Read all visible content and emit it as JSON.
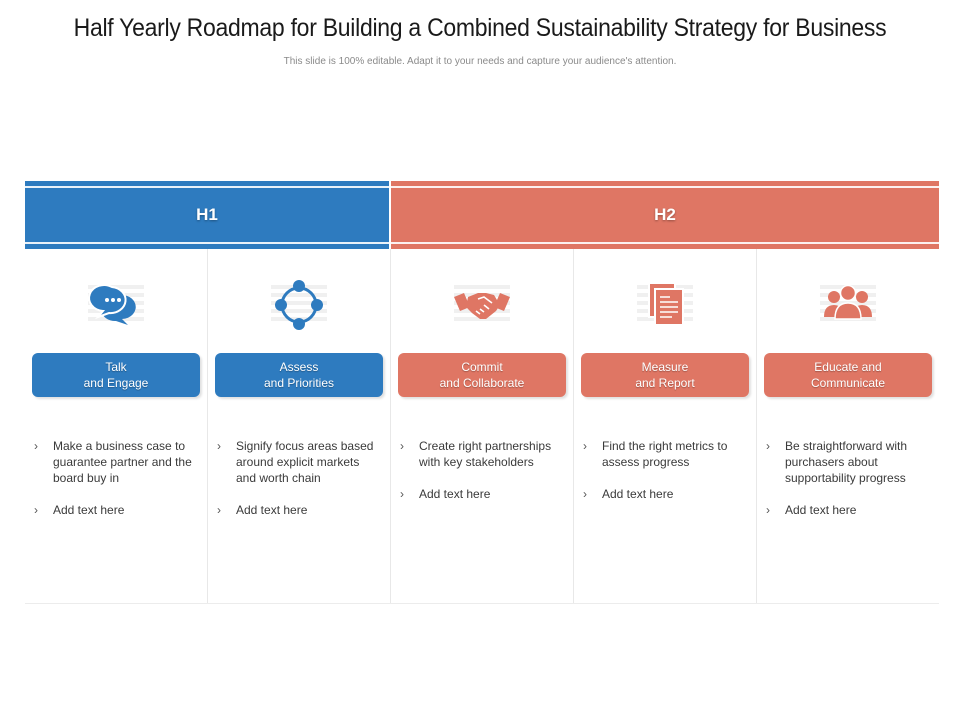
{
  "title": "Half Yearly Roadmap for Building a Combined Sustainability Strategy for Business",
  "subtitle": "This slide is 100% editable. Adapt it to your needs and capture your audience's attention.",
  "colors": {
    "blue": "#2e7bbf",
    "red": "#df7664"
  },
  "periods": [
    {
      "label": "H1"
    },
    {
      "label": "H2"
    }
  ],
  "columns": [
    {
      "icon": "chat-bubbles-icon",
      "label_line1": "Talk",
      "label_line2": "and Engage",
      "bullets": [
        "Make a business case to guarantee partner and the board buy in",
        "Add text here"
      ]
    },
    {
      "icon": "network-nodes-icon",
      "label_line1": "Assess",
      "label_line2": "and Priorities",
      "bullets": [
        "Signify focus areas based around explicit markets and worth chain",
        "Add text here"
      ]
    },
    {
      "icon": "handshake-icon",
      "label_line1": "Commit",
      "label_line2": "and Collaborate",
      "bullets": [
        "Create right partnerships with key stakeholders",
        "Add text here"
      ]
    },
    {
      "icon": "documents-icon",
      "label_line1": "Measure",
      "label_line2": "and Report",
      "bullets": [
        "Find the right metrics to assess progress",
        "Add text here"
      ]
    },
    {
      "icon": "group-people-icon",
      "label_line1": "Educate and",
      "label_line2": "Communicate",
      "bullets": [
        "Be straightforward with purchasers about supportability progress",
        "Add text here"
      ]
    }
  ]
}
